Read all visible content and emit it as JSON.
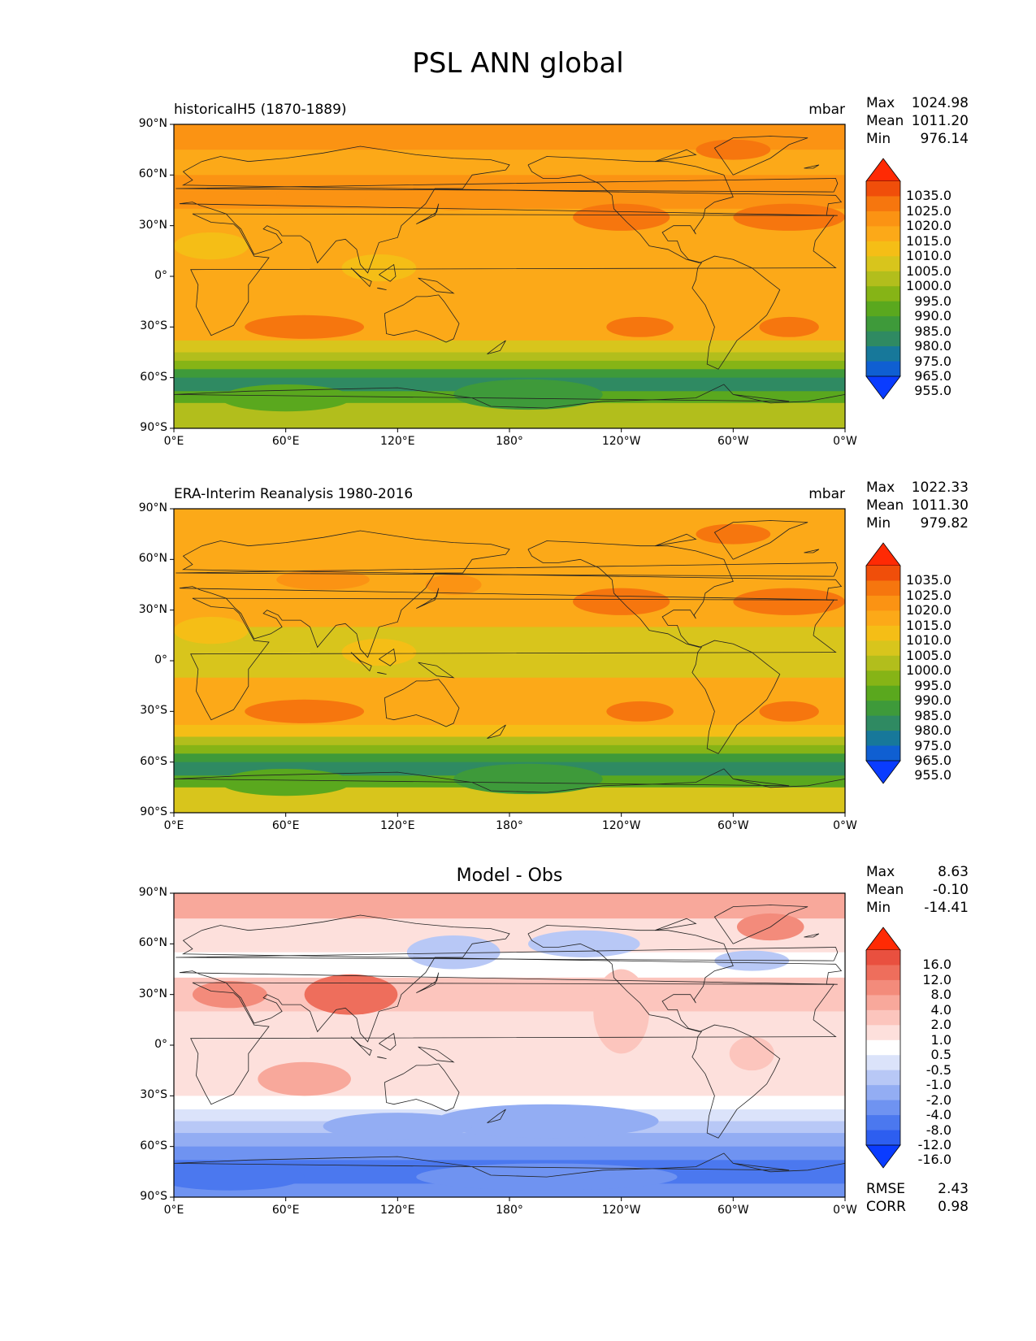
{
  "title": "PSL ANN global",
  "panels": [
    {
      "name": "test",
      "left_title": "historicalH5 (1870-1889)",
      "center_title": "",
      "units": "mbar",
      "stats": [
        {
          "label": "Max",
          "value": "1024.98"
        },
        {
          "label": "Mean",
          "value": "1011.20"
        },
        {
          "label": "Min",
          "value": "976.14"
        }
      ],
      "colorbar_labels": [
        "1035.0",
        "1025.0",
        "1020.0",
        "1015.0",
        "1010.0",
        "1005.0",
        "1000.0",
        "995.0",
        "990.0",
        "985.0",
        "980.0",
        "975.0",
        "965.0",
        "955.0"
      ],
      "metrics": []
    },
    {
      "name": "reference",
      "left_title": "ERA-Interim Reanalysis 1980-2016",
      "center_title": "",
      "units": "mbar",
      "stats": [
        {
          "label": "Max",
          "value": "1022.33"
        },
        {
          "label": "Mean",
          "value": "1011.30"
        },
        {
          "label": "Min",
          "value": "979.82"
        }
      ],
      "colorbar_labels": [
        "1035.0",
        "1025.0",
        "1020.0",
        "1015.0",
        "1010.0",
        "1005.0",
        "1000.0",
        "995.0",
        "990.0",
        "985.0",
        "980.0",
        "975.0",
        "965.0",
        "955.0"
      ],
      "metrics": []
    },
    {
      "name": "difference",
      "left_title": "",
      "center_title": "Model - Obs",
      "units": "",
      "stats": [
        {
          "label": "Max",
          "value": "8.63"
        },
        {
          "label": "Mean",
          "value": "-0.10"
        },
        {
          "label": "Min",
          "value": "-14.41"
        }
      ],
      "colorbar_labels": [
        "16.0",
        "12.0",
        "8.0",
        "4.0",
        "2.0",
        "1.0",
        "0.5",
        "-0.5",
        "-1.0",
        "-2.0",
        "-4.0",
        "-8.0",
        "-12.0",
        "-16.0"
      ],
      "metrics": [
        {
          "label": "RMSE",
          "value": "2.43"
        },
        {
          "label": "CORR",
          "value": "0.98"
        }
      ]
    }
  ],
  "x_ticks": [
    "0°E",
    "60°E",
    "120°E",
    "180°",
    "120°W",
    "60°W",
    "0°W"
  ],
  "y_ticks": [
    "90°N",
    "60°N",
    "30°N",
    "0°",
    "30°S",
    "60°S",
    "90°S"
  ],
  "colors": {
    "abs_scale": [
      "#0a3cff",
      "#0f5fd2",
      "#17789a",
      "#2f8a62",
      "#3e9a3a",
      "#5aa81e",
      "#86b416",
      "#b2be1c",
      "#d8c51c",
      "#f5be16",
      "#fca918",
      "#fb9313",
      "#f6760e",
      "#f04e0a",
      "#ff2a04"
    ],
    "diff_scale": [
      "#0a3cff",
      "#2d5ef0",
      "#4b78ef",
      "#6f93f1",
      "#93adf3",
      "#b8c8f6",
      "#dbe3fa",
      "#ffffff",
      "#fde0dc",
      "#fcc5bd",
      "#f8a89b",
      "#f38b7b",
      "#ee6e5c",
      "#e9503f",
      "#ff2a04"
    ]
  }
}
